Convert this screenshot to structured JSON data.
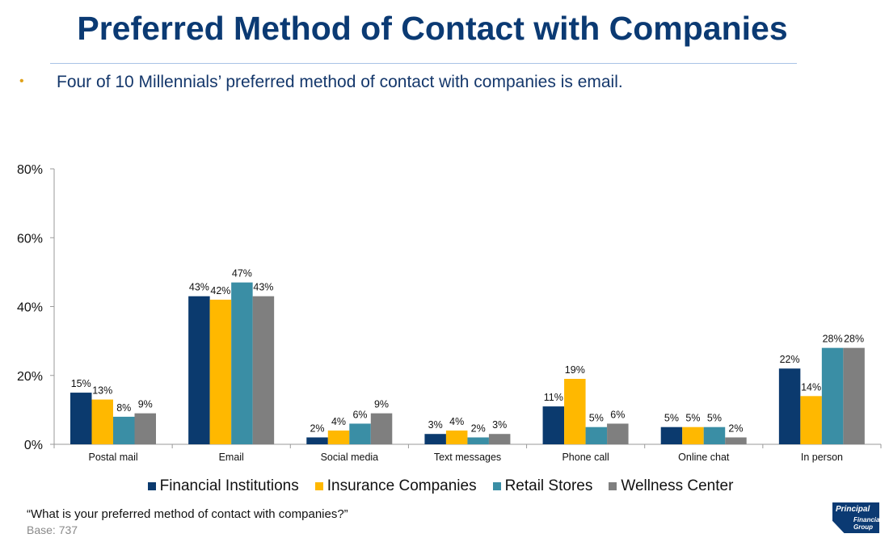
{
  "header": {
    "title": "Preferred Method of Contact with Companies",
    "bullet": "Four of 10 Millennials’ preferred method of contact with companies is email."
  },
  "chart_data": {
    "type": "bar",
    "categories": [
      "Postal mail",
      "Email",
      "Social media",
      "Text messages",
      "Phone call",
      "Online chat",
      "In person"
    ],
    "series": [
      {
        "name": "Financial Institutions",
        "color": "#0b3a6e",
        "values": [
          15,
          43,
          2,
          3,
          11,
          5,
          22
        ],
        "labels": [
          "15%",
          "43%",
          "2%",
          "3%",
          "11%",
          "5%",
          "22%"
        ]
      },
      {
        "name": "Insurance Companies",
        "color": "#ffb800",
        "values": [
          13,
          42,
          4,
          4,
          19,
          5,
          14
        ],
        "labels": [
          "13%",
          "42%",
          "4%",
          "4%",
          "19%",
          "5%",
          "14%"
        ]
      },
      {
        "name": "Retail Stores",
        "color": "#3a8ea5",
        "values": [
          8,
          47,
          6,
          2,
          5,
          5,
          28
        ],
        "labels": [
          "8%",
          "47%",
          "6%",
          "2%",
          "5%",
          "5%",
          "28%"
        ]
      },
      {
        "name": "Wellness Center",
        "color": "#7f7f7f",
        "values": [
          9,
          43,
          9,
          3,
          6,
          2,
          28
        ],
        "labels": [
          "9%",
          "43%",
          "9%",
          "3%",
          "6%",
          "2%",
          "28%"
        ]
      }
    ],
    "ylim": [
      0,
      80
    ],
    "yticks": [
      "0%",
      "20%",
      "40%",
      "60%",
      "80%"
    ],
    "ytick_values": [
      0,
      20,
      40,
      60,
      80
    ],
    "grid": false,
    "legend_position": "bottom"
  },
  "footer": {
    "question": "“What is your preferred method of contact with companies?”",
    "base": "Base: 737",
    "logo_line1": "Principal",
    "logo_line2": "Financial",
    "logo_line3": "Group"
  }
}
